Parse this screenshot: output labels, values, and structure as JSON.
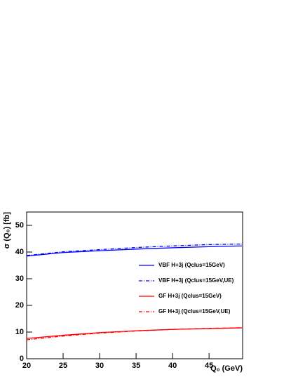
{
  "chart_data": {
    "type": "line",
    "xlabel": "Q₀ (GeV)",
    "ylabel": "σ (Q₀) [fb]",
    "x": [
      20,
      25,
      30,
      35,
      40,
      45,
      49.5
    ],
    "series": [
      {
        "name": "VBF H+3j (Qclus=15GeV)",
        "color": "#0000ff",
        "dash": "solid",
        "values": [
          38.5,
          39.8,
          40.5,
          41.1,
          41.6,
          42.0,
          42.3
        ]
      },
      {
        "name": "VBF H+3j (Qclus=15GeV,UE)",
        "color": "#0000ff",
        "dash": "dashdot",
        "values": [
          38.7,
          40.1,
          40.9,
          41.7,
          42.3,
          42.8,
          43.0
        ]
      },
      {
        "name": "GF H+3j (Qclus=15GeV)",
        "color": "#ff0000",
        "dash": "solid",
        "values": [
          7.6,
          8.8,
          9.8,
          10.5,
          11.0,
          11.3,
          11.6
        ]
      },
      {
        "name": "GF H+3j (Qclus=15GeV,UE)",
        "color": "#ff0000",
        "dash": "dashdot",
        "values": [
          7.1,
          8.5,
          9.6,
          10.4,
          11.0,
          11.4,
          11.6
        ]
      }
    ],
    "xlim": [
      20,
      49.6
    ],
    "ylim": [
      0,
      55
    ],
    "xticks": [
      20,
      25,
      30,
      35,
      40,
      45
    ],
    "yticks": [
      0,
      10,
      20,
      30,
      40,
      50
    ],
    "legend": "right"
  }
}
